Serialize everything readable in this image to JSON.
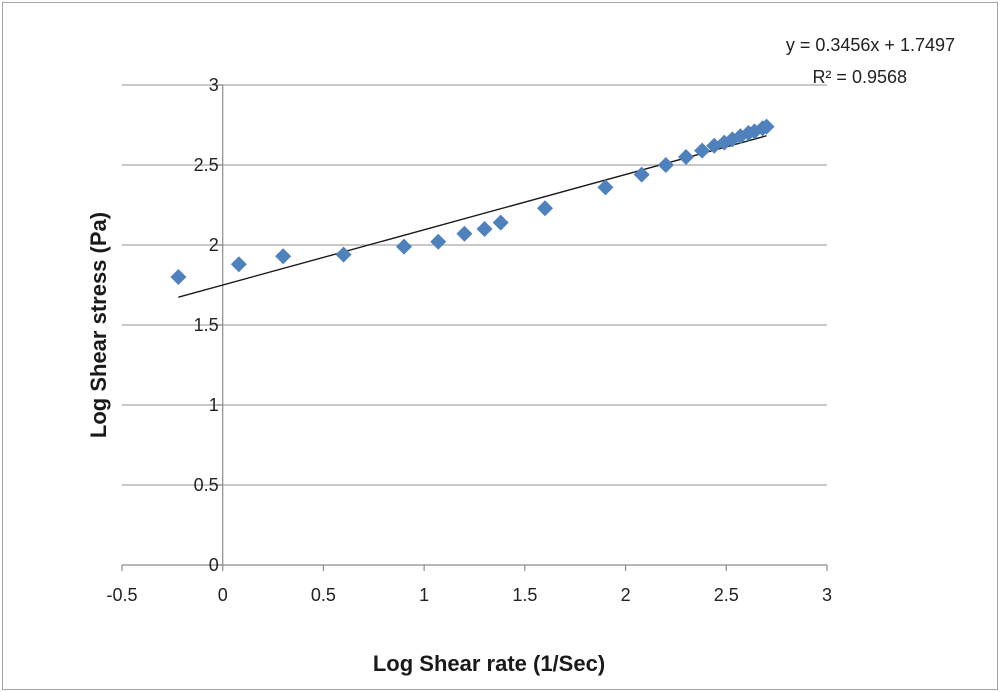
{
  "chart_data": {
    "type": "scatter",
    "title": "",
    "xlabel": "Log Shear rate (1/Sec)",
    "ylabel": "Log Shear stress (Pa)",
    "xlim": [
      -0.5,
      3
    ],
    "ylim": [
      0,
      3
    ],
    "x_ticks": [
      -0.5,
      0,
      0.5,
      1,
      1.5,
      2,
      2.5,
      3
    ],
    "x_tick_labels": [
      "-0.5",
      "0",
      "0.5",
      "1",
      "1.5",
      "2",
      "2.5",
      "3"
    ],
    "y_ticks": [
      0,
      0.5,
      1,
      1.5,
      2,
      2.5,
      3
    ],
    "y_tick_labels": [
      "0",
      "0.5",
      "1",
      "1.5",
      "2",
      "2.5",
      "3"
    ],
    "grid": "horizontal",
    "legend": "none",
    "marker_color": "#4f81bd",
    "trendline_color": "#1a1a1a",
    "series": [
      {
        "points": [
          [
            -0.22,
            1.8
          ],
          [
            0.08,
            1.88
          ],
          [
            0.3,
            1.93
          ],
          [
            0.6,
            1.94
          ],
          [
            0.9,
            1.99
          ],
          [
            1.07,
            2.02
          ],
          [
            1.2,
            2.07
          ],
          [
            1.3,
            2.1
          ],
          [
            1.38,
            2.14
          ],
          [
            1.6,
            2.23
          ],
          [
            1.9,
            2.36
          ],
          [
            2.08,
            2.44
          ],
          [
            2.2,
            2.5
          ],
          [
            2.3,
            2.55
          ],
          [
            2.38,
            2.59
          ],
          [
            2.44,
            2.62
          ],
          [
            2.49,
            2.64
          ],
          [
            2.53,
            2.66
          ],
          [
            2.57,
            2.68
          ],
          [
            2.61,
            2.7
          ],
          [
            2.64,
            2.71
          ],
          [
            2.68,
            2.73
          ],
          [
            2.7,
            2.74
          ]
        ]
      }
    ],
    "trendline": {
      "type": "linear",
      "slope": 0.3456,
      "intercept": 1.7497,
      "x_range": [
        -0.22,
        2.7
      ],
      "equation_label": "y = 0.3456x + 1.7497",
      "r2_label": "R² = 0.9568"
    }
  }
}
